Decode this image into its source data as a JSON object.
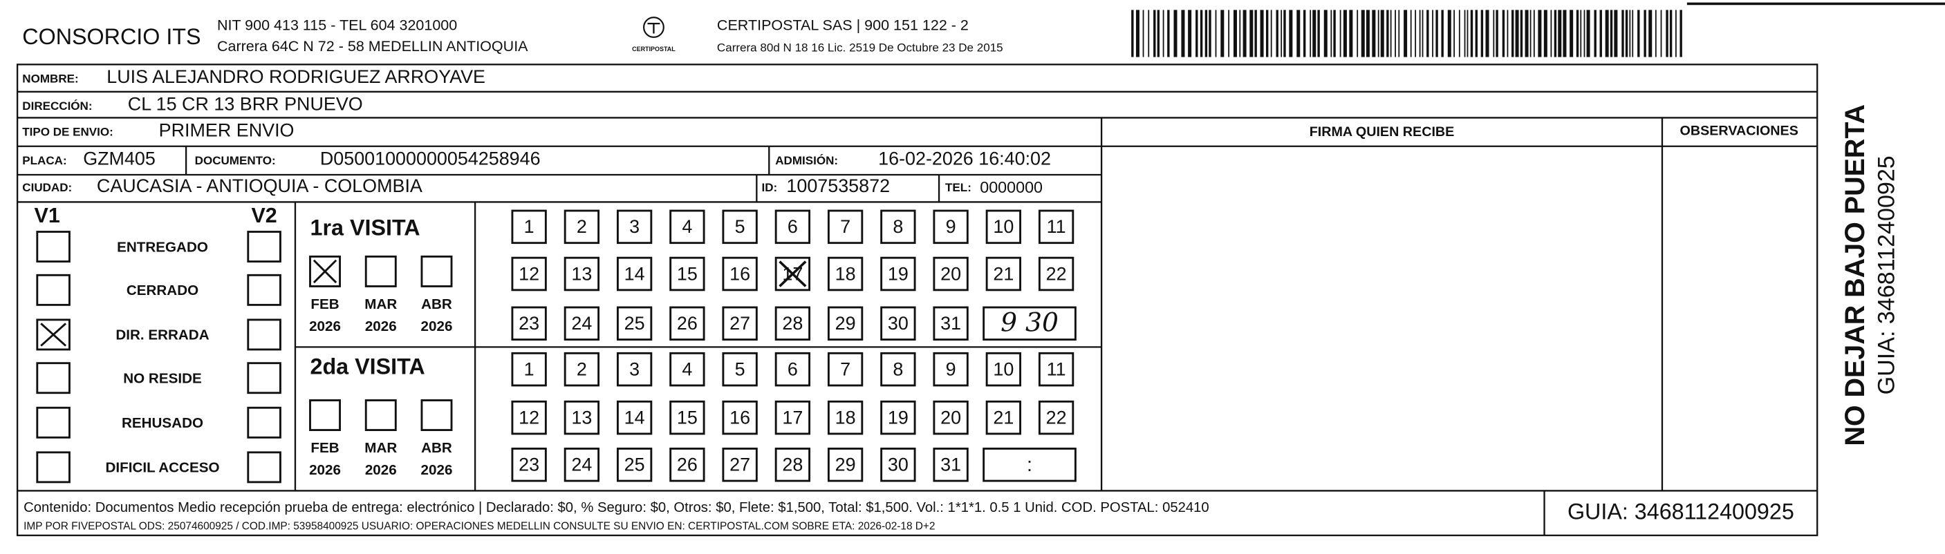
{
  "header": {
    "company": "CONSORCIO ITS",
    "nit": "NIT 900 413 115 - TEL 604 3201000",
    "address": "Carrera 64C N 72 - 58 MEDELLIN ANTIOQUIA",
    "logo_text": "CERTIPOSTAL",
    "carrier": "CERTIPOSTAL SAS | 900 151 122 - 2",
    "carrier_address": "Carrera 80d N 18 16  Lic. 2519 De Octubre 23 De 2015"
  },
  "recipient": {
    "name_label": "NOMBRE:",
    "name": "LUIS ALEJANDRO RODRIGUEZ ARROYAVE",
    "address_label": "DIRECCIÓN:",
    "address": "CL 15 CR 13 BRR PNUEVO",
    "type_label": "TIPO DE ENVIO:",
    "type": "PRIMER ENVIO",
    "plate_label": "PLACA:",
    "plate": "GZM405",
    "document_label": "DOCUMENTO:",
    "document": "D05001000000054258946",
    "admission_label": "ADMISIÓN:",
    "admission": "16-02-2026 16:40:02",
    "city_label": "CIUDAD:",
    "city": "CAUCASIA - ANTIOQUIA - COLOMBIA",
    "id_label": "ID:",
    "id": "1007535872",
    "tel_label": "TEL:",
    "tel": "0000000"
  },
  "signature_label": "FIRMA QUIEN RECIBE",
  "observations_label": "OBSERVACIONES",
  "status": {
    "v1": "V1",
    "v2": "V2",
    "options": [
      {
        "label": "ENTREGADO",
        "v1": false,
        "v2": false
      },
      {
        "label": "CERRADO",
        "v1": false,
        "v2": false
      },
      {
        "label": "DIR. ERRADA",
        "v1": true,
        "v2": false
      },
      {
        "label": "NO RESIDE",
        "v1": false,
        "v2": false
      },
      {
        "label": "REHUSADO",
        "v1": false,
        "v2": false
      },
      {
        "label": "DIFICIL ACCESO",
        "v1": false,
        "v2": false
      }
    ]
  },
  "visits": [
    {
      "title": "1ra VISITA",
      "months": [
        {
          "month": "FEB",
          "year": "2026",
          "checked": true
        },
        {
          "month": "MAR",
          "year": "2026",
          "checked": false
        },
        {
          "month": "ABR",
          "year": "2026",
          "checked": false
        }
      ],
      "days": [
        1,
        2,
        3,
        4,
        5,
        6,
        7,
        8,
        9,
        10,
        11,
        12,
        13,
        14,
        15,
        16,
        17,
        18,
        19,
        20,
        21,
        22,
        23,
        24,
        25,
        26,
        27,
        28,
        29,
        30,
        31
      ],
      "marked_days": [
        17
      ],
      "time": "9 30"
    },
    {
      "title": "2da VISITA",
      "months": [
        {
          "month": "FEB",
          "year": "2026",
          "checked": false
        },
        {
          "month": "MAR",
          "year": "2026",
          "checked": false
        },
        {
          "month": "ABR",
          "year": "2026",
          "checked": false
        }
      ],
      "days": [
        1,
        2,
        3,
        4,
        5,
        6,
        7,
        8,
        9,
        10,
        11,
        12,
        13,
        14,
        15,
        16,
        17,
        18,
        19,
        20,
        21,
        22,
        23,
        24,
        25,
        26,
        27,
        28,
        29,
        30,
        31
      ],
      "marked_days": [],
      "time": ":"
    }
  ],
  "side": {
    "warning": "NO DEJAR BAJO PUERTA",
    "guide": "GUIA: 3468112400925"
  },
  "footer": {
    "contents": "Contenido: Documentos Medio recepción prueba de entrega: electrónico | Declarado: $0, % Seguro: $0, Otros: $0, Flete: $1,500, Total: $1,500. Vol.: 1*1*1. 0.5  1 Unid. COD. POSTAL: 052410",
    "print_info": "IMP POR FIVEPOSTAL ODS: 25074600925 / COD.IMP: 53958400925 USUARIO: OPERACIONES MEDELLIN CONSULTE SU ENVIO EN: CERTIPOSTAL.COM SOBRE ETA: 2026-02-18 D+2",
    "guide": "GUIA: 3468112400925"
  }
}
